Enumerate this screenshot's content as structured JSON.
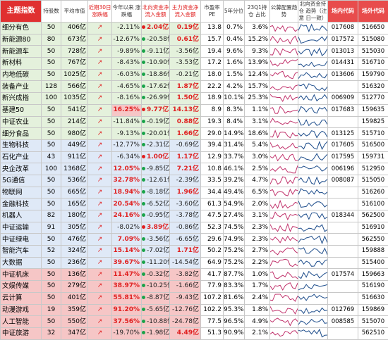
{
  "headers": [
    "主题指数",
    "持股数",
    "平均市值",
    "近期30日\n涨跌幅",
    "今年以来\n涨跌幅",
    "北向资金净\n流入金额",
    "主力资金净\n流入金额",
    "市盈率PE",
    "5年分位",
    "23Q1持仓\n占比",
    "公募配置趋\n势",
    "北向资金持仓\n趋势（注意\n日一致）",
    "场内代码",
    "场外代码"
  ],
  "rows": [
    {
      "group": "g",
      "name": "细分有色",
      "holders": "50",
      "mcap": "406亿",
      "arrow": "↗",
      "ytd": "-2.11%",
      "north": "2.04亿",
      "main": "0.19亿",
      "pe": "13.8",
      "pct5": "0.7%",
      "hold": "3.6%",
      "code1": "017608",
      "code2": "516650",
      "ytd_sign": "neg",
      "north_sign": "pos",
      "main_sign": "pos",
      "north_b": true,
      "main_b": true
    },
    {
      "group": "g",
      "name": "新能源80",
      "holders": "80",
      "mcap": "673亿",
      "arrow": "↗",
      "ytd": "-12.67%",
      "north": "-20.58亿",
      "main": "0.61亿",
      "pe": "15.7",
      "pct5": "0.4%",
      "hold": "15.2%",
      "code1": "017572",
      "code2": "515080",
      "ytd_sign": "neg",
      "north_sign": "neg",
      "main_sign": "pos",
      "north_b": false,
      "main_b": true
    },
    {
      "group": "g",
      "name": "新能源车",
      "holders": "50",
      "mcap": "728亿",
      "arrow": "↗",
      "ytd": "-9.89%",
      "north": "-9.11亿",
      "main": "-3.56亿",
      "pe": "19.4",
      "pct5": "9.6%",
      "hold": "9.3%",
      "code1": "013013",
      "code2": "515030",
      "ytd_sign": "neg",
      "north_sign": "neg",
      "main_sign": "neg",
      "north_b": false,
      "main_b": false
    },
    {
      "group": "g",
      "name": "新材料",
      "holders": "50",
      "mcap": "767亿",
      "arrow": "↗",
      "ytd": "-8.43%",
      "north": "-10.90亿",
      "main": "-3.53亿",
      "pe": "17.2",
      "pct5": "1.6%",
      "hold": "13.9%",
      "code1": "014431",
      "code2": "516710",
      "ytd_sign": "neg",
      "north_sign": "neg",
      "main_sign": "neg",
      "north_b": false,
      "main_b": false
    },
    {
      "group": "g",
      "name": "内地低碳",
      "holders": "50",
      "mcap": "1025亿",
      "arrow": "↗",
      "ytd": "-6.03%",
      "north": "-18.86亿",
      "main": "-0.21亿",
      "pe": "18.0",
      "pct5": "1.5%",
      "hold": "12.4%",
      "code1": "013606",
      "code2": "159790",
      "ytd_sign": "neg",
      "north_sign": "neg",
      "main_sign": "neg",
      "north_b": false,
      "main_b": false
    },
    {
      "group": "g",
      "name": "装备产业",
      "holders": "128",
      "mcap": "566亿",
      "arrow": "↗",
      "ytd": "-4.65%",
      "north": "-17.62亿",
      "main": "1.87亿",
      "pe": "22.2",
      "pct5": "4.2%",
      "hold": "15.7%",
      "code1": "",
      "code2": "516320",
      "ytd_sign": "neg",
      "north_sign": "neg",
      "main_sign": "pos",
      "north_b": false,
      "main_b": true
    },
    {
      "group": "g",
      "name": "新兴成指",
      "holders": "100",
      "mcap": "1035亿",
      "arrow": "↗",
      "ytd": "-8.16%",
      "north": "-26.99亿",
      "main": "1.50亿",
      "pe": "18.9",
      "pct5": "10.1%",
      "hold": "25.3%",
      "code1": "006909",
      "code2": "512770",
      "ytd_sign": "neg",
      "north_sign": "neg",
      "main_sign": "pos",
      "north_b": false,
      "main_b": true
    },
    {
      "group": "g",
      "name": "基建50",
      "holders": "50",
      "mcap": "541亿",
      "arrow": "↗",
      "ytd": "16.25%",
      "north": "9.77亿",
      "main": "14.13亿",
      "pe": "8.9",
      "pct5": "8.3%",
      "hold": "1.1%",
      "code1": "017683",
      "code2": "159635",
      "ytd_sign": "pos",
      "north_sign": "pos",
      "main_sign": "pos",
      "north_b": true,
      "main_b": true,
      "hl": true
    },
    {
      "group": "g",
      "name": "中证农业",
      "holders": "50",
      "mcap": "214亿",
      "arrow": "↗",
      "ytd": "-11.84%",
      "north": "-0.19亿",
      "main": "0.88亿",
      "pe": "19.3",
      "pct5": "8.4%",
      "hold": "3.1%",
      "code1": "",
      "code2": "159825",
      "ytd_sign": "neg",
      "north_sign": "neg",
      "main_sign": "pos",
      "north_b": false,
      "main_b": true
    },
    {
      "group": "g",
      "name": "细分食品",
      "holders": "50",
      "mcap": "980亿",
      "arrow": "↗",
      "ytd": "-9.13%",
      "north": "-20.01亿",
      "main": "1.66亿",
      "pe": "29.0",
      "pct5": "14.9%",
      "hold": "18.6%",
      "code1": "013125",
      "code2": "515710",
      "ytd_sign": "neg",
      "north_sign": "neg",
      "main_sign": "pos",
      "north_b": false,
      "main_b": true
    },
    {
      "group": "b",
      "name": "生物科技",
      "holders": "50",
      "mcap": "449亿",
      "arrow": "↗",
      "ytd": "-12.77%",
      "north": "-2.31亿",
      "main": "-0.69亿",
      "pe": "39.4",
      "pct5": "31.4%",
      "hold": "5.4%",
      "code1": "017605",
      "code2": "516500",
      "ytd_sign": "neg",
      "north_sign": "neg",
      "main_sign": "neg",
      "north_b": false,
      "main_b": false
    },
    {
      "group": "b",
      "name": "石化产业",
      "holders": "43",
      "mcap": "911亿",
      "arrow": "↗",
      "ytd": "-6.34%",
      "north": "1.00亿",
      "main": "1.17亿",
      "pe": "12.9",
      "pct5": "33.7%",
      "hold": "3.0%",
      "code1": "017595",
      "code2": "159731",
      "ytd_sign": "neg",
      "north_sign": "pos",
      "main_sign": "pos",
      "north_b": true,
      "main_b": true
    },
    {
      "group": "b",
      "name": "央企改革",
      "holders": "100",
      "mcap": "1368亿",
      "arrow": "↗",
      "ytd": "12.05%",
      "north": "-9.85亿",
      "main": "7.21亿",
      "pe": "10.8",
      "pct5": "46.1%",
      "hold": "2.5%",
      "code1": "006196",
      "code2": "512950",
      "ytd_sign": "pos",
      "north_sign": "neg",
      "main_sign": "pos",
      "north_b": false,
      "main_b": true
    },
    {
      "group": "b",
      "name": "5G通信",
      "holders": "50",
      "mcap": "536亿",
      "arrow": "↗",
      "ytd": "32.78%",
      "north": "-12.61亿",
      "main": "-2.39亿",
      "pe": "33.5",
      "pct5": "39.2%",
      "hold": "4.7%",
      "code1": "008087",
      "code2": "515050",
      "ytd_sign": "pos",
      "north_sign": "neg",
      "main_sign": "neg",
      "north_b": false,
      "main_b": false
    },
    {
      "group": "b",
      "name": "物联网",
      "holders": "50",
      "mcap": "665亿",
      "arrow": "↗",
      "ytd": "18.94%",
      "north": "-8.18亿",
      "main": "1.96亿",
      "pe": "34.4",
      "pct5": "49.4%",
      "hold": "6.5%",
      "code1": "",
      "code2": "516260",
      "ytd_sign": "pos",
      "north_sign": "neg",
      "main_sign": "pos",
      "north_b": false,
      "main_b": true
    },
    {
      "group": "b",
      "name": "金融科技",
      "holders": "50",
      "mcap": "165亿",
      "arrow": "↗",
      "ytd": "20.54%",
      "north": "-6.52亿",
      "main": "-3.60亿",
      "pe": "61.3",
      "pct5": "54.9%",
      "hold": "2.0%",
      "code1": "",
      "code2": "516100",
      "ytd_sign": "pos",
      "north_sign": "neg",
      "main_sign": "neg",
      "north_b": false,
      "main_b": false
    },
    {
      "group": "b",
      "name": "机器人",
      "holders": "82",
      "mcap": "180亿",
      "arrow": "↗",
      "ytd": "24.16%",
      "north": "-0.95亿",
      "main": "-3.78亿",
      "pe": "47.5",
      "pct5": "27.4%",
      "hold": "3.1%",
      "code1": "018344",
      "code2": "562500",
      "ytd_sign": "pos",
      "north_sign": "neg",
      "main_sign": "neg",
      "north_b": false,
      "main_b": false
    },
    {
      "group": "b",
      "name": "中证运输",
      "holders": "91",
      "mcap": "305亿",
      "arrow": "↗",
      "ytd": "-8.02%",
      "north": "3.89亿",
      "main": "-0.86亿",
      "pe": "52.3",
      "pct5": "74.5%",
      "hold": "2.3%",
      "code1": "",
      "code2": "516910",
      "ytd_sign": "neg",
      "north_sign": "pos",
      "main_sign": "neg",
      "north_b": true,
      "main_b": false
    },
    {
      "group": "b",
      "name": "中证绿电",
      "holders": "50",
      "mcap": "476亿",
      "arrow": "↗",
      "ytd": "7.09%",
      "north": "-3.56亿",
      "main": "-6.65亿",
      "pe": "29.6",
      "pct5": "74.9%",
      "hold": "2.3%",
      "code1": "",
      "code2": "562550",
      "ytd_sign": "pos",
      "north_sign": "neg",
      "main_sign": "neg",
      "north_b": false,
      "main_b": false
    },
    {
      "group": "b",
      "name": "智能汽车",
      "holders": "52",
      "mcap": "324亿",
      "arrow": "↗",
      "ytd": "15.14%",
      "north": "-7.02亿",
      "main": "1.71亿",
      "pe": "50.2",
      "pct5": "75.2%",
      "hold": "2.7%",
      "code1": "",
      "code2": "159888",
      "ytd_sign": "pos",
      "north_sign": "neg",
      "main_sign": "pos",
      "north_b": false,
      "main_b": true
    },
    {
      "group": "b",
      "name": "大数据",
      "holders": "50",
      "mcap": "236亿",
      "arrow": "↗",
      "ytd": "39.67%",
      "north": "-11.20亿",
      "main": "-14.54亿",
      "pe": "64.9",
      "pct5": "75.2%",
      "hold": "2.2%",
      "code1": "",
      "code2": "515400",
      "ytd_sign": "pos",
      "north_sign": "neg",
      "main_sign": "neg",
      "north_b": false,
      "main_b": false
    },
    {
      "group": "p",
      "name": "中证机床",
      "holders": "50",
      "mcap": "136亿",
      "arrow": "↗",
      "ytd": "11.47%",
      "north": "-0.32亿",
      "main": "-3.82亿",
      "pe": "41.7",
      "pct5": "87.7%",
      "hold": "1.0%",
      "code1": "017574",
      "code2": "159663",
      "ytd_sign": "pos",
      "north_sign": "neg",
      "main_sign": "neg",
      "north_b": false,
      "main_b": false
    },
    {
      "group": "p",
      "name": "文娱传媒",
      "holders": "50",
      "mcap": "279亿",
      "arrow": "↗",
      "ytd": "38.97%",
      "north": "-10.25亿",
      "main": "-1.66亿",
      "pe": "77.9",
      "pct5": "83.3%",
      "hold": "1.7%",
      "code1": "",
      "code2": "516190",
      "ytd_sign": "pos",
      "north_sign": "neg",
      "main_sign": "neg",
      "north_b": false,
      "main_b": false
    },
    {
      "group": "p",
      "name": "云计算",
      "holders": "50",
      "mcap": "401亿",
      "arrow": "↗",
      "ytd": "55.81%",
      "north": "-8.87亿",
      "main": "-9.43亿",
      "pe": "107.2",
      "pct5": "81.6%",
      "hold": "2.4%",
      "code1": "",
      "code2": "516630",
      "ytd_sign": "pos",
      "north_sign": "neg",
      "main_sign": "neg",
      "north_b": false,
      "main_b": false
    },
    {
      "group": "p",
      "name": "动漫游戏",
      "holders": "19",
      "mcap": "359亿",
      "arrow": "↗",
      "ytd": "91.20%",
      "north": "-5.65亿",
      "main": "-12.76亿",
      "pe": "102.2",
      "pct5": "95.3%",
      "hold": "1.8%",
      "code1": "012769",
      "code2": "159869",
      "ytd_sign": "pos",
      "north_sign": "neg",
      "main_sign": "neg",
      "north_b": false,
      "main_b": false
    },
    {
      "group": "p",
      "name": "人工智能",
      "holders": "50",
      "mcap": "550亿",
      "arrow": "↗",
      "ytd": "37.56%",
      "north": "-10.88亿",
      "main": "-24.78亿",
      "pe": "77.5",
      "pct5": "96.5%",
      "hold": "4.9%",
      "code1": "008585",
      "code2": "515070",
      "ytd_sign": "pos",
      "north_sign": "neg",
      "main_sign": "neg",
      "north_b": false,
      "main_b": false
    },
    {
      "group": "p",
      "name": "中证旅游",
      "holders": "32",
      "mcap": "347亿",
      "arrow": "↗",
      "ytd": "-19.70%",
      "north": "-1.98亿",
      "main": "4.49亿",
      "pe": "51.3",
      "pct5": "90.9%",
      "hold": "2.1%",
      "code1": "",
      "code2": "562510",
      "ytd_sign": "neg",
      "north_sign": "neg",
      "main_sign": "pos",
      "north_b": false,
      "main_b": true
    }
  ],
  "colors": {
    "pos": "#e02020",
    "neg": "#1aa34a",
    "spark_a": "#c0306a",
    "spark_b": "#1f4e8c"
  }
}
